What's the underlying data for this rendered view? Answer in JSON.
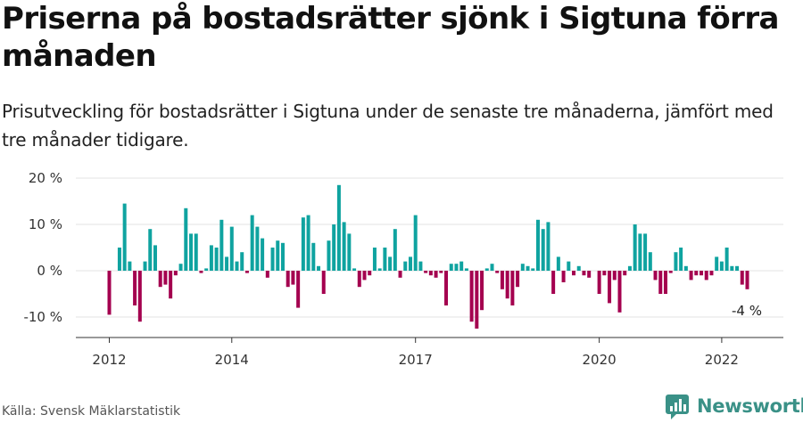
{
  "title": "Priserna på bostadsrätter sjönk i Sigtuna förra månaden",
  "subtitle": "Prisutveckling för bostadsrätter i Sigtuna under de senaste tre månaderna, jämfört med tre månader tidigare.",
  "source": "Källa: Svensk Mäklarstatistik",
  "brand": {
    "name": "Newsworthy",
    "logo_icon": "bar-chart-logo-icon",
    "color": "#3a9187"
  },
  "colors": {
    "positive": "#0fa3a0",
    "negative": "#a4004f"
  },
  "chart_data": {
    "type": "bar",
    "title": "Priserna på bostadsrätter sjönk i Sigtuna förra månaden",
    "xlabel": "",
    "ylabel": "",
    "ylim": [
      -14,
      21
    ],
    "yticks": [
      20,
      10,
      0,
      -10
    ],
    "ytick_labels": [
      "20 %",
      "10 %",
      "0 %",
      "-10 %"
    ],
    "xtick_labels": [
      "2012",
      "2014",
      "2017",
      "2020",
      "2022"
    ],
    "xtick_months": [
      "2012-01",
      "2014-01",
      "2017-01",
      "2020-01",
      "2022-01"
    ],
    "start_month": "2012-01",
    "grid": true,
    "last_value_label": "-4 %",
    "values": [
      -9.5,
      0,
      5,
      14.5,
      2,
      -7.5,
      -11,
      2,
      9,
      5.5,
      -3.5,
      -3,
      -6,
      -1,
      1.5,
      13.5,
      8,
      8,
      -0.5,
      0.5,
      5.5,
      5,
      11,
      3,
      9.5,
      2,
      4,
      -0.5,
      12,
      9.5,
      7,
      -1.5,
      5,
      6.5,
      6,
      -3.5,
      -3,
      -8,
      11.5,
      12,
      6,
      1,
      -5,
      6.5,
      10,
      18.5,
      10.5,
      8,
      0.5,
      -3.5,
      -2,
      -1,
      5,
      0.5,
      5,
      3,
      9,
      -1.5,
      2,
      3,
      12,
      2,
      -0.5,
      -1,
      -1.5,
      -0.5,
      -7.5,
      1.5,
      1.5,
      2,
      0.5,
      -11,
      -12.5,
      -8.5,
      0.5,
      1.5,
      -0.5,
      -4,
      -6,
      -7.5,
      -3.5,
      1.5,
      1,
      0.5,
      11,
      9,
      10.5,
      -5,
      3,
      -2.5,
      2,
      -1,
      1,
      -1,
      -1.5,
      0,
      -5,
      -1,
      -7,
      -2,
      -9,
      -1,
      1,
      10,
      8,
      8,
      4,
      -2,
      -5,
      -5,
      -0.5,
      4,
      5,
      1,
      -2,
      -1,
      -1,
      -2,
      -1,
      3,
      2,
      5,
      1,
      1,
      -3,
      -4
    ]
  }
}
